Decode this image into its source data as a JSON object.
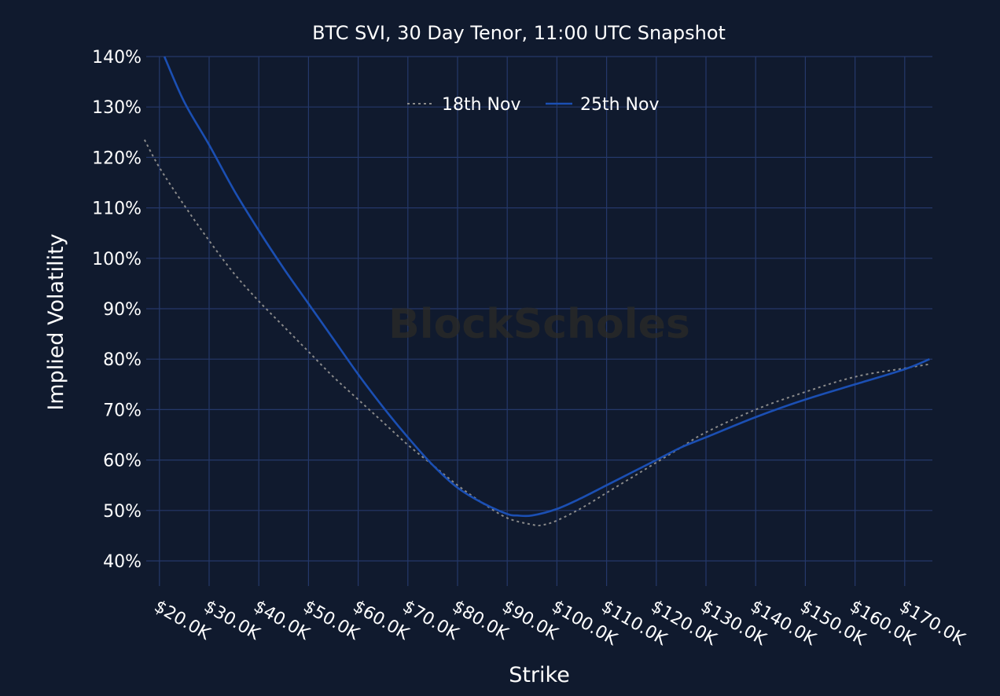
{
  "chart_data": {
    "type": "line",
    "title": "BTC SVI, 30 Day Tenor, 11:00 UTC Snapshot",
    "xlabel": "Strike",
    "ylabel": "Implied Volatility",
    "watermark": "BlockScholes",
    "xlim": [
      17000,
      175000
    ],
    "ylim": [
      35,
      140
    ],
    "x_ticks": [
      20000,
      30000,
      40000,
      50000,
      60000,
      70000,
      80000,
      90000,
      100000,
      110000,
      120000,
      130000,
      140000,
      150000,
      160000,
      170000
    ],
    "x_tick_labels": [
      "$20.0K",
      "$30.0K",
      "$40.0K",
      "$50.0K",
      "$60.0K",
      "$70.0K",
      "$80.0K",
      "$90.0K",
      "$100.0K",
      "$110.0K",
      "$120.0K",
      "$130.0K",
      "$140.0K",
      "$150.0K",
      "$160.0K",
      "$170.0K"
    ],
    "y_ticks": [
      40,
      50,
      60,
      70,
      80,
      90,
      100,
      110,
      120,
      130,
      140
    ],
    "y_tick_labels": [
      "40%",
      "50%",
      "60%",
      "70%",
      "80%",
      "90%",
      "100%",
      "110%",
      "120%",
      "130%",
      "140%"
    ],
    "grid": true,
    "legend_position": "top-center",
    "series": [
      {
        "name": "18th Nov",
        "color": "#8a8a8a",
        "dash": "dotted",
        "x": [
          17000,
          20000,
          25000,
          30000,
          35000,
          40000,
          45000,
          50000,
          55000,
          60000,
          65000,
          70000,
          75000,
          80000,
          85000,
          90000,
          95000,
          97000,
          100000,
          105000,
          110000,
          115000,
          120000,
          125000,
          130000,
          140000,
          150000,
          160000,
          170000,
          175000
        ],
        "y": [
          123.5,
          118,
          110.5,
          103.5,
          97,
          91.5,
          86.5,
          81.5,
          76.5,
          72,
          67.5,
          63,
          59,
          55,
          51.5,
          48.5,
          47.2,
          47.1,
          48,
          50.5,
          53.5,
          56.5,
          59.5,
          62.5,
          65.5,
          70,
          73.5,
          76.5,
          78.2,
          79
        ]
      },
      {
        "name": "25th Nov",
        "color": "#1b4fb3",
        "dash": "solid",
        "x": [
          21000,
          25000,
          30000,
          35000,
          40000,
          45000,
          50000,
          55000,
          60000,
          65000,
          70000,
          75000,
          80000,
          85000,
          90000,
          92000,
          95000,
          100000,
          105000,
          110000,
          115000,
          120000,
          125000,
          130000,
          140000,
          150000,
          160000,
          170000,
          175000
        ],
        "y": [
          140,
          131,
          122.5,
          113.5,
          105.5,
          98,
          91,
          84,
          77,
          70.5,
          64.5,
          59,
          54.5,
          51.5,
          49.3,
          49,
          49,
          50.3,
          52.5,
          55,
          57.5,
          60,
          62.5,
          64.5,
          68.5,
          72,
          75,
          78,
          80
        ]
      }
    ]
  }
}
